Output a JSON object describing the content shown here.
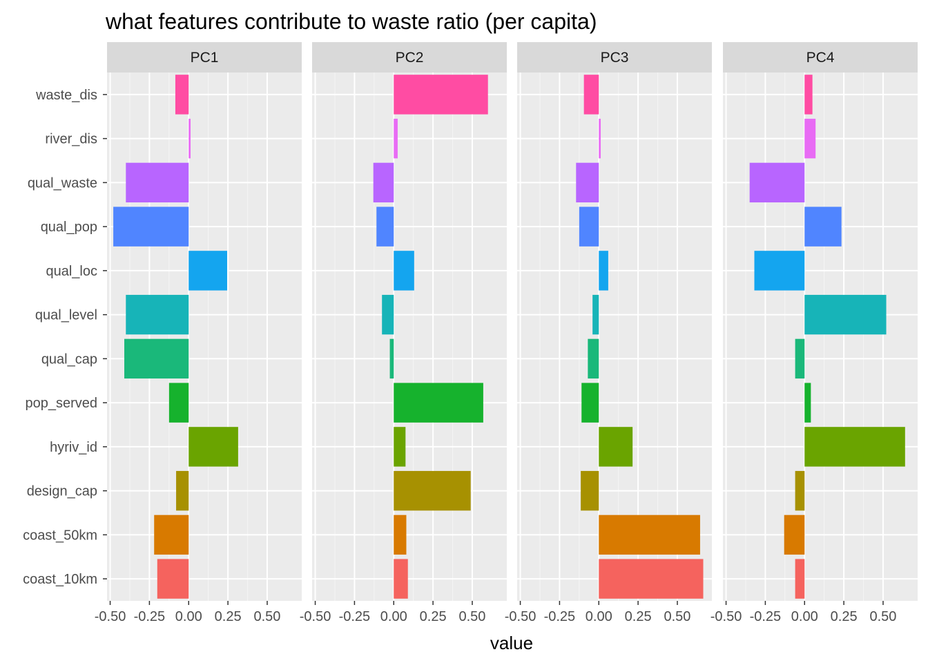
{
  "chart_data": {
    "type": "bar",
    "orientation": "horizontal",
    "title": "what features contribute to waste ratio (per capita)",
    "xlabel": "value",
    "ylabel": "",
    "xlim": [
      -0.52,
      0.72
    ],
    "xticks": [
      -0.5,
      -0.25,
      0.0,
      0.25,
      0.5
    ],
    "xtick_labels": [
      "-0.50",
      "-0.25",
      "0.00",
      "0.25",
      "0.50"
    ],
    "grid": true,
    "legend": "none",
    "categories": [
      "waste_dis",
      "river_dis",
      "qual_waste",
      "qual_pop",
      "qual_loc",
      "qual_level",
      "qual_cap",
      "pop_served",
      "hyriv_id",
      "design_cap",
      "coast_50km",
      "coast_10km"
    ],
    "colors": [
      "#FF4CA3",
      "#E86BF4",
      "#B865FF",
      "#5085FF",
      "#14A5EF",
      "#17B4B8",
      "#1AB87A",
      "#16B22D",
      "#6AA400",
      "#A79101",
      "#D87A00",
      "#F5635E"
    ],
    "panels": [
      {
        "name": "PC1",
        "values": [
          -0.085,
          0.012,
          -0.4,
          -0.48,
          0.245,
          -0.4,
          -0.41,
          -0.125,
          0.315,
          -0.08,
          -0.22,
          -0.2
        ]
      },
      {
        "name": "PC2",
        "values": [
          0.6,
          0.025,
          -0.13,
          -0.11,
          0.13,
          -0.075,
          -0.025,
          0.57,
          0.075,
          0.49,
          0.08,
          0.09
        ]
      },
      {
        "name": "PC3",
        "values": [
          -0.095,
          0.012,
          -0.145,
          -0.125,
          0.06,
          -0.04,
          -0.07,
          -0.11,
          0.215,
          -0.115,
          0.645,
          0.665
        ]
      },
      {
        "name": "PC4",
        "values": [
          0.05,
          0.07,
          -0.35,
          0.235,
          -0.32,
          0.52,
          -0.06,
          0.04,
          0.64,
          -0.06,
          -0.13,
          -0.06
        ]
      }
    ]
  }
}
